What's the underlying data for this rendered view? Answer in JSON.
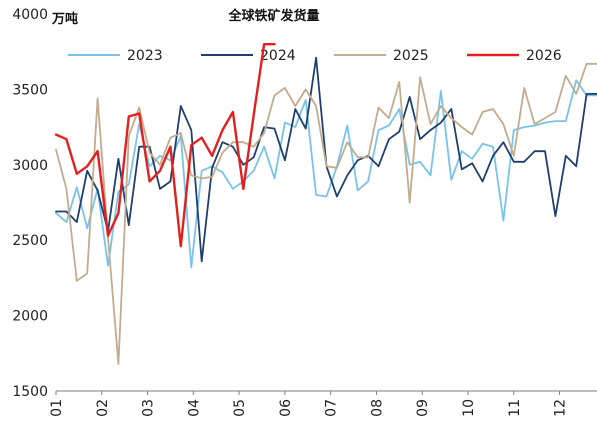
{
  "chart_data": {
    "type": "line",
    "title": "全球铁矿发货量",
    "ylabel": "万吨",
    "xlabel": "",
    "ylim": [
      1500,
      4000
    ],
    "yticks": [
      1500,
      2000,
      2500,
      3000,
      3500,
      4000
    ],
    "xlim": [
      1,
      53
    ],
    "x_tick_labels": [
      "01",
      "02",
      "03",
      "04",
      "05",
      "06",
      "07",
      "08",
      "09",
      "10",
      "11",
      "12"
    ],
    "x_tick_weeks": [
      1,
      5.4,
      9.8,
      14.2,
      18.6,
      23,
      27.4,
      31.8,
      36.2,
      40.6,
      45,
      49.4
    ],
    "legend_position": "top",
    "grid": false,
    "series": [
      {
        "name": "2023",
        "color": "#79c3ea",
        "x": [
          1,
          2,
          3,
          4,
          5,
          6,
          7,
          8,
          9,
          10,
          11,
          12,
          13,
          14,
          15,
          16,
          17,
          18,
          19,
          20,
          21,
          22,
          23,
          24,
          25,
          26,
          27,
          28,
          29,
          30,
          31,
          32,
          33,
          34,
          35,
          36,
          37,
          38,
          39,
          40,
          41,
          42,
          43,
          44,
          45,
          46,
          47,
          48,
          49,
          50,
          51,
          52,
          53
        ],
        "values": [
          2680,
          2620,
          2850,
          2580,
          2840,
          2330,
          2820,
          2870,
          3270,
          2990,
          3060,
          3030,
          3190,
          2320,
          2960,
          2990,
          2950,
          2840,
          2890,
          2960,
          3120,
          2910,
          3280,
          3250,
          3430,
          2800,
          2790,
          2990,
          3260,
          2830,
          2890,
          3230,
          3260,
          3370,
          3000,
          3020,
          2930,
          3490,
          2900,
          3090,
          3040,
          3140,
          3120,
          2630,
          3230,
          3250,
          3260,
          3280,
          3290,
          3290,
          3560,
          3460,
          3460
        ]
      },
      {
        "name": "2024",
        "color": "#1f3f6e",
        "x": [
          1,
          2,
          3,
          4,
          5,
          6,
          7,
          8,
          9,
          10,
          11,
          12,
          13,
          14,
          15,
          16,
          17,
          18,
          19,
          20,
          21,
          22,
          23,
          24,
          25,
          26,
          27,
          28,
          29,
          30,
          31,
          32,
          33,
          34,
          35,
          36,
          37,
          38,
          39,
          40,
          41,
          42,
          43,
          44,
          45,
          46,
          47,
          48,
          49,
          50,
          51,
          52,
          53
        ],
        "values": [
          2690,
          2690,
          2620,
          2960,
          2830,
          2560,
          3040,
          2600,
          3120,
          3120,
          2840,
          2890,
          3390,
          3230,
          2360,
          2980,
          3150,
          3120,
          3000,
          3050,
          3250,
          3240,
          3030,
          3370,
          3240,
          3710,
          2990,
          2790,
          2930,
          3030,
          3060,
          2990,
          3170,
          3220,
          3450,
          3170,
          3230,
          3280,
          3370,
          2970,
          3010,
          2890,
          3060,
          3150,
          3020,
          3020,
          3090,
          3090,
          2660,
          3060,
          2990,
          3470,
          3470
        ]
      },
      {
        "name": "2025",
        "color": "#c3ab8e",
        "x": [
          1,
          2,
          3,
          4,
          5,
          6,
          7,
          8,
          9,
          10,
          11,
          12,
          13,
          14,
          15,
          16,
          17,
          18,
          19,
          20,
          21,
          22,
          23,
          24,
          25,
          26,
          27,
          28,
          29,
          30,
          31,
          32,
          33,
          34,
          35,
          36,
          37,
          38,
          39,
          40,
          41,
          42,
          43,
          44,
          45,
          46,
          47,
          48,
          49,
          50,
          51,
          52,
          53
        ],
        "values": [
          3100,
          2840,
          2230,
          2280,
          3440,
          2520,
          1680,
          3190,
          3380,
          3080,
          3000,
          3180,
          3210,
          2930,
          2910,
          2920,
          3080,
          3150,
          3150,
          3120,
          3210,
          3460,
          3510,
          3390,
          3500,
          3390,
          2990,
          2980,
          3150,
          3050,
          3050,
          3380,
          3310,
          3550,
          2750,
          3580,
          3270,
          3390,
          3310,
          3250,
          3200,
          3350,
          3370,
          3270,
          3060,
          3510,
          3270,
          3310,
          3350,
          3590,
          3470,
          3670,
          3670
        ]
      },
      {
        "name": "2026",
        "color": "#e3201e",
        "x": [
          1,
          2,
          3,
          4,
          5,
          6,
          7,
          8,
          9,
          10,
          11,
          12,
          13,
          14,
          15,
          16,
          17,
          18,
          19,
          20,
          21,
          22
        ],
        "values": [
          3200,
          3170,
          2940,
          2990,
          3090,
          2530,
          2680,
          3320,
          3340,
          2890,
          2960,
          3120,
          2460,
          3130,
          3180,
          3060,
          3230,
          3350,
          2840,
          3330,
          3800,
          3800
        ]
      }
    ]
  }
}
